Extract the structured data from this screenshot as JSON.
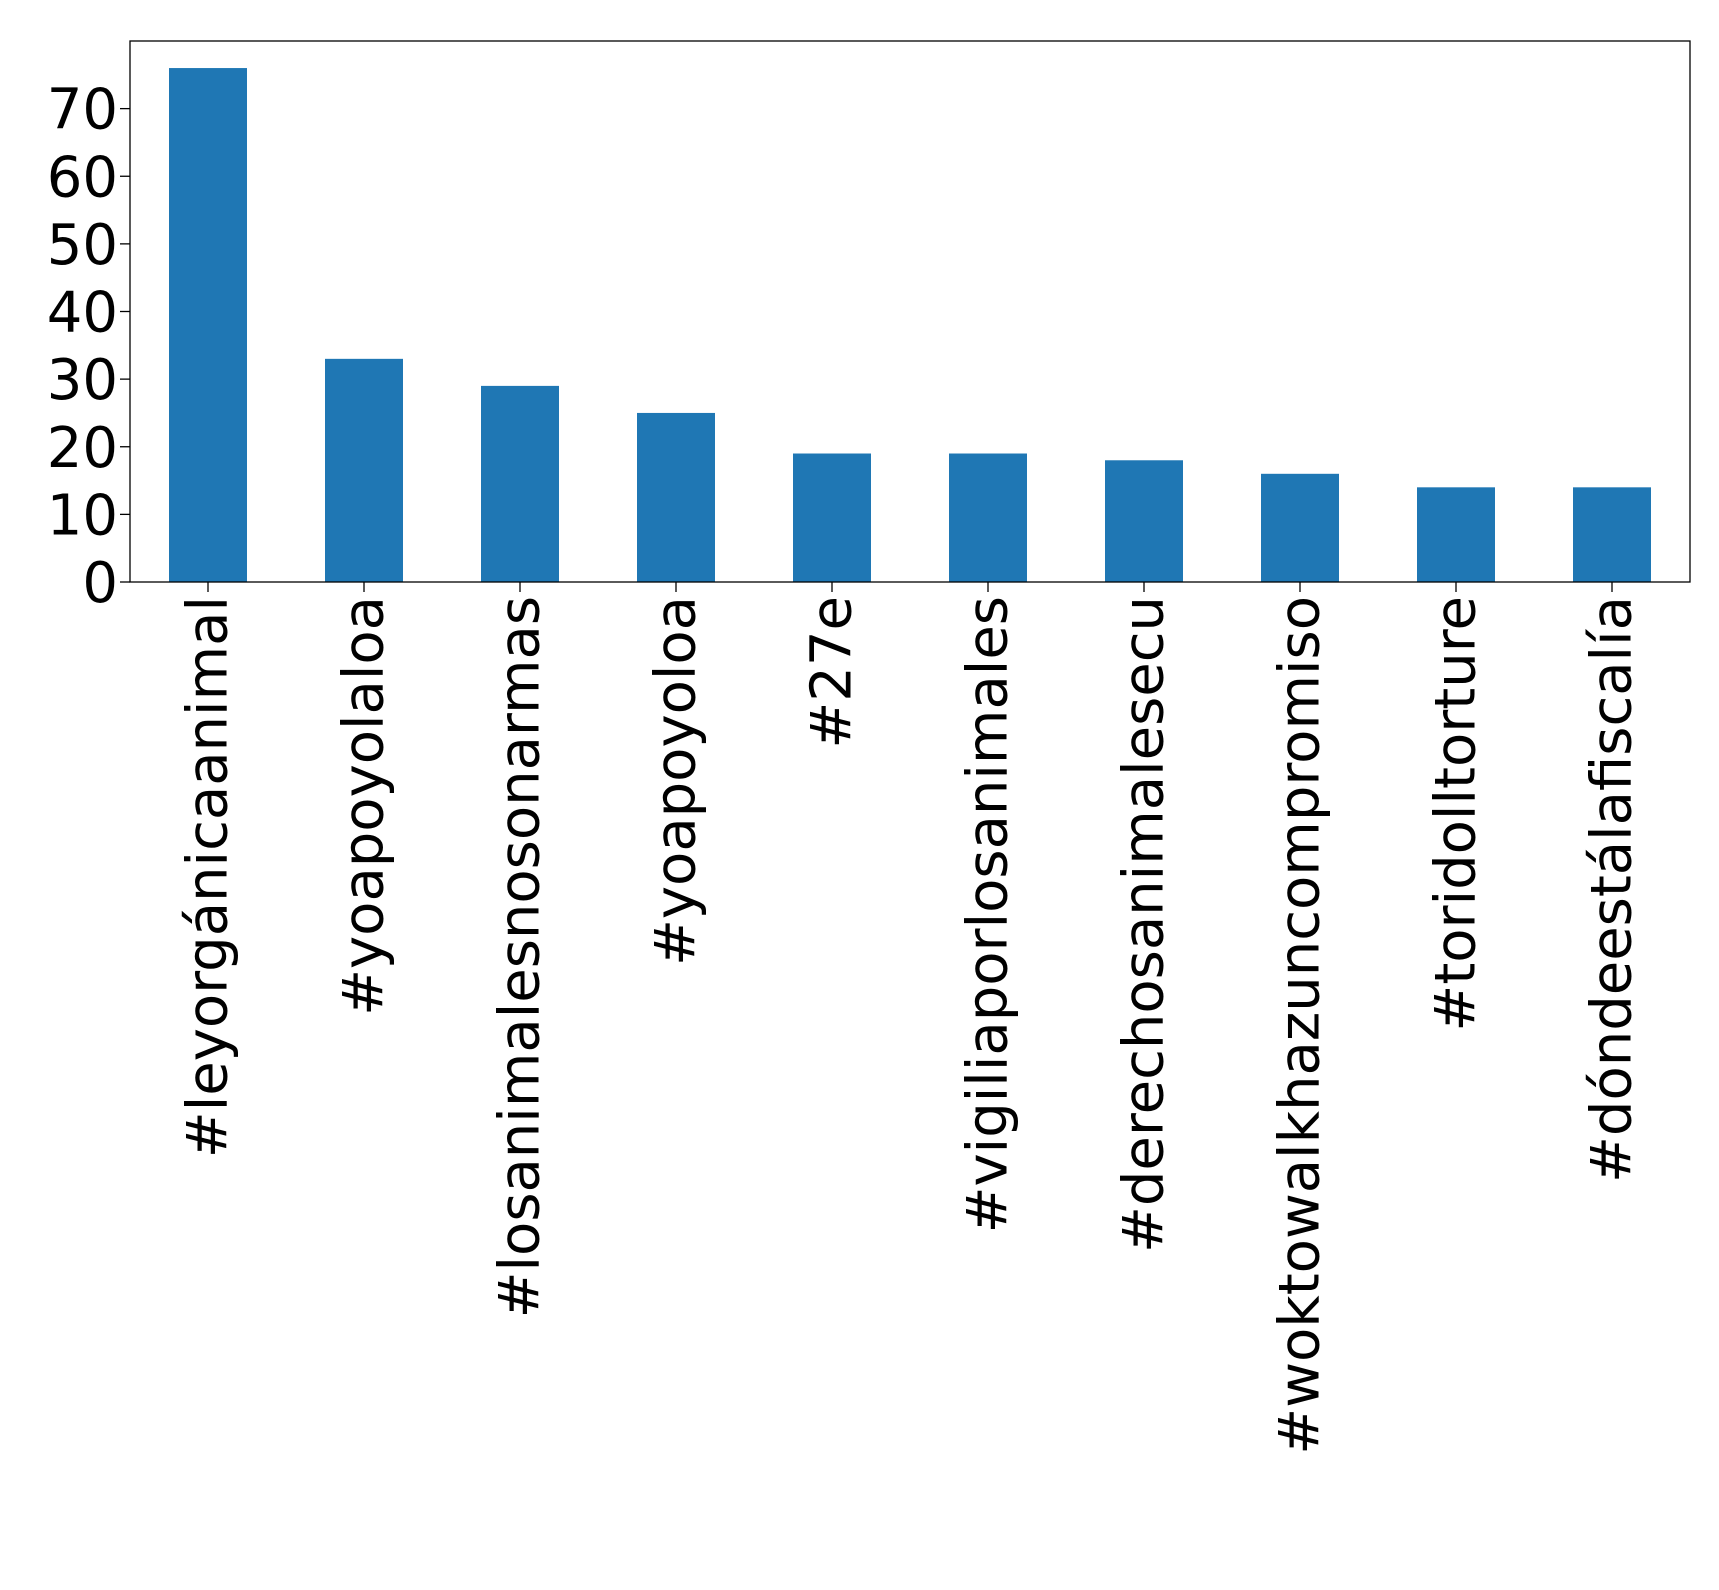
{
  "chart_data": {
    "type": "bar",
    "title": "",
    "xlabel": "",
    "ylabel": "",
    "categories": [
      "#leyorgánicaanimal",
      "#yoapoyolaloa",
      "#losanimalesnosonarmas",
      "#yoapoyoloa",
      "#27e",
      "#vigiliaporlosanimales",
      "#derechosanimalesecu",
      "#woktowalkhazuncompromiso",
      "#toridolltorture",
      "#dóndeestálafiscalía"
    ],
    "values": [
      76,
      33,
      29,
      25,
      19,
      19,
      18,
      16,
      14,
      14
    ],
    "ylim": [
      0,
      80
    ],
    "yticks": [
      0,
      10,
      20,
      30,
      40,
      50,
      60,
      70
    ],
    "bar_color": "#1f77b4",
    "grid": false,
    "legend": "none"
  }
}
